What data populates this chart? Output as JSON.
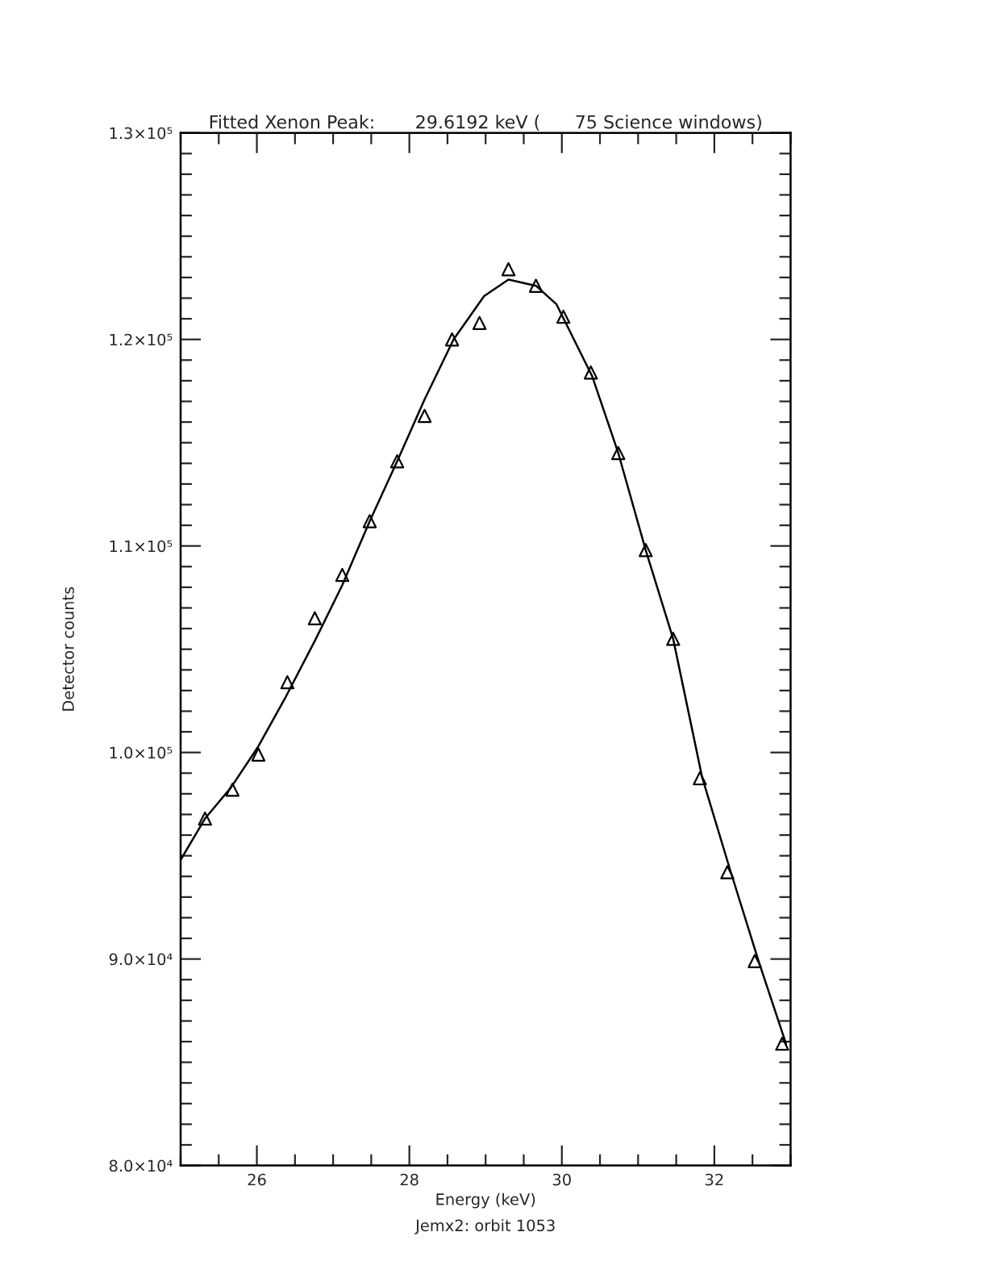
{
  "chart_data": {
    "type": "scatter",
    "title": "Fitted Xenon Peak:       29.6192 keV (      75 Science windows)",
    "xlabel": "Energy (keV)",
    "ylabel": "Detector counts",
    "annotations": [
      "Jemx2: orbit 1053"
    ],
    "xlim": [
      25,
      33
    ],
    "ylim": [
      80000,
      130000
    ],
    "xticks": [
      {
        "value": 25,
        "label": null
      },
      {
        "value": 25.5,
        "label": null
      },
      26,
      {
        "value": 26.5,
        "label": null
      },
      {
        "value": 27,
        "label": null
      },
      {
        "value": 27.5,
        "label": null
      },
      28,
      {
        "value": 28.5,
        "label": null
      },
      {
        "value": 29,
        "label": null
      },
      {
        "value": 29.5,
        "label": null
      },
      30,
      {
        "value": 30.5,
        "label": null
      },
      {
        "value": 31,
        "label": null
      },
      {
        "value": 31.5,
        "label": null
      },
      32,
      {
        "value": 32.5,
        "label": null
      },
      {
        "value": 33,
        "label": null
      }
    ],
    "yticks": [
      {
        "value": 80000,
        "label": "8.0×10⁴"
      },
      {
        "value": 90000,
        "label": "9.0×10⁴"
      },
      {
        "value": 100000,
        "label": "1.0×10⁵"
      },
      {
        "value": 110000,
        "label": "1.1×10⁵"
      },
      {
        "value": 120000,
        "label": "1.2×10⁵"
      },
      {
        "value": 130000,
        "label": "1.3×10⁵"
      },
      {
        "value": 81000,
        "label": null
      },
      {
        "value": 82000,
        "label": null
      },
      {
        "value": 83000,
        "label": null
      },
      {
        "value": 84000,
        "label": null
      },
      {
        "value": 85000,
        "label": null
      },
      {
        "value": 86000,
        "label": null
      },
      {
        "value": 87000,
        "label": null
      },
      {
        "value": 88000,
        "label": null
      },
      {
        "value": 89000,
        "label": null
      },
      {
        "value": 91000,
        "label": null
      },
      {
        "value": 92000,
        "label": null
      },
      {
        "value": 93000,
        "label": null
      },
      {
        "value": 94000,
        "label": null
      },
      {
        "value": 95000,
        "label": null
      },
      {
        "value": 96000,
        "label": null
      },
      {
        "value": 97000,
        "label": null
      },
      {
        "value": 98000,
        "label": null
      },
      {
        "value": 99000,
        "label": null
      },
      {
        "value": 101000,
        "label": null
      },
      {
        "value": 102000,
        "label": null
      },
      {
        "value": 103000,
        "label": null
      },
      {
        "value": 104000,
        "label": null
      },
      {
        "value": 105000,
        "label": null
      },
      {
        "value": 106000,
        "label": null
      },
      {
        "value": 107000,
        "label": null
      },
      {
        "value": 108000,
        "label": null
      },
      {
        "value": 109000,
        "label": null
      },
      {
        "value": 111000,
        "label": null
      },
      {
        "value": 112000,
        "label": null
      },
      {
        "value": 113000,
        "label": null
      },
      {
        "value": 114000,
        "label": null
      },
      {
        "value": 115000,
        "label": null
      },
      {
        "value": 116000,
        "label": null
      },
      {
        "value": 117000,
        "label": null
      },
      {
        "value": 118000,
        "label": null
      },
      {
        "value": 119000,
        "label": null
      },
      {
        "value": 121000,
        "label": null
      },
      {
        "value": 122000,
        "label": null
      },
      {
        "value": 123000,
        "label": null
      },
      {
        "value": 124000,
        "label": null
      },
      {
        "value": 125000,
        "label": null
      },
      {
        "value": 126000,
        "label": null
      },
      {
        "value": 127000,
        "label": null
      },
      {
        "value": 128000,
        "label": null
      },
      {
        "value": 129000,
        "label": null
      }
    ],
    "grid": false,
    "series": [
      {
        "color": "#000000",
        "marker": "triangle",
        "x": [
          25.32,
          25.68,
          26.02,
          26.4,
          26.76,
          27.12,
          27.48,
          27.84,
          28.2,
          28.56,
          28.92,
          29.3,
          29.66,
          30.02,
          30.38,
          30.74,
          31.1,
          31.46,
          31.81,
          32.17,
          32.53,
          32.89
        ],
        "values": [
          96800,
          98200,
          99900,
          103400,
          106500,
          108600,
          111200,
          114100,
          116300,
          120000,
          120800,
          123400,
          122600,
          121100,
          118400,
          114500,
          109800,
          105500,
          98750,
          94200,
          89900,
          85900
        ]
      },
      {
        "type": "line",
        "color": "#000000",
        "marker": "none",
        "line_style": "solid",
        "x": [
          25.0,
          25.32,
          25.66,
          26.02,
          26.38,
          26.76,
          27.12,
          27.48,
          27.84,
          28.2,
          28.58,
          28.98,
          29.3,
          29.66,
          29.93,
          30.4,
          30.74,
          31.1,
          31.46,
          31.84,
          32.2,
          32.58,
          32.94
        ],
        "values": [
          94800,
          96800,
          98300,
          100300,
          102700,
          105400,
          108100,
          111200,
          114100,
          117100,
          120000,
          122100,
          122900,
          122600,
          121700,
          118200,
          114500,
          109800,
          105500,
          98800,
          94400,
          89900,
          85900
        ]
      }
    ]
  }
}
